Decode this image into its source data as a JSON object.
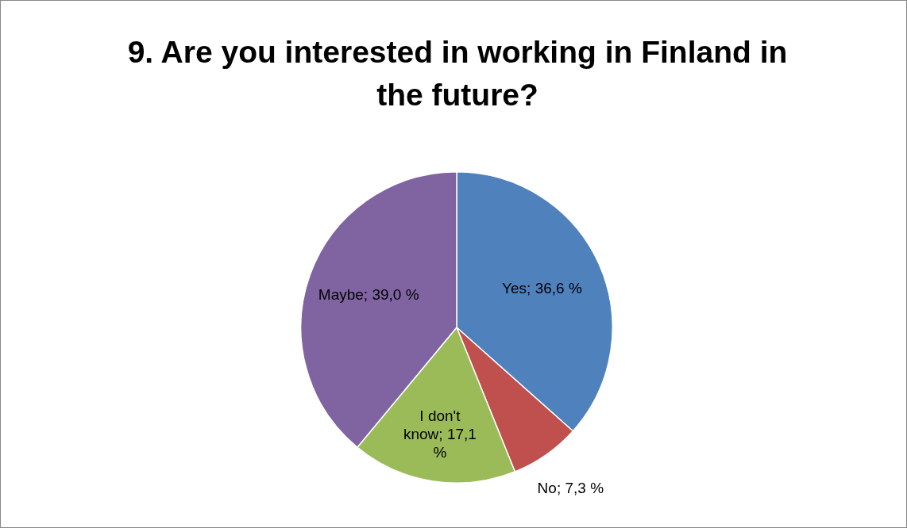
{
  "chart_data": {
    "type": "pie",
    "title": "9. Are you interested in working in Finland in the future?",
    "categories": [
      "Yes",
      "No",
      "I don't know",
      "Maybe"
    ],
    "values": [
      36.6,
      7.3,
      17.1,
      39.0
    ],
    "colors": [
      "#4f81bd",
      "#c0504d",
      "#9bbb59",
      "#8064a2"
    ],
    "value_labels": [
      "36,6 %",
      "7,3 %",
      "17,1 %",
      "39,0 %"
    ],
    "legend": false
  }
}
